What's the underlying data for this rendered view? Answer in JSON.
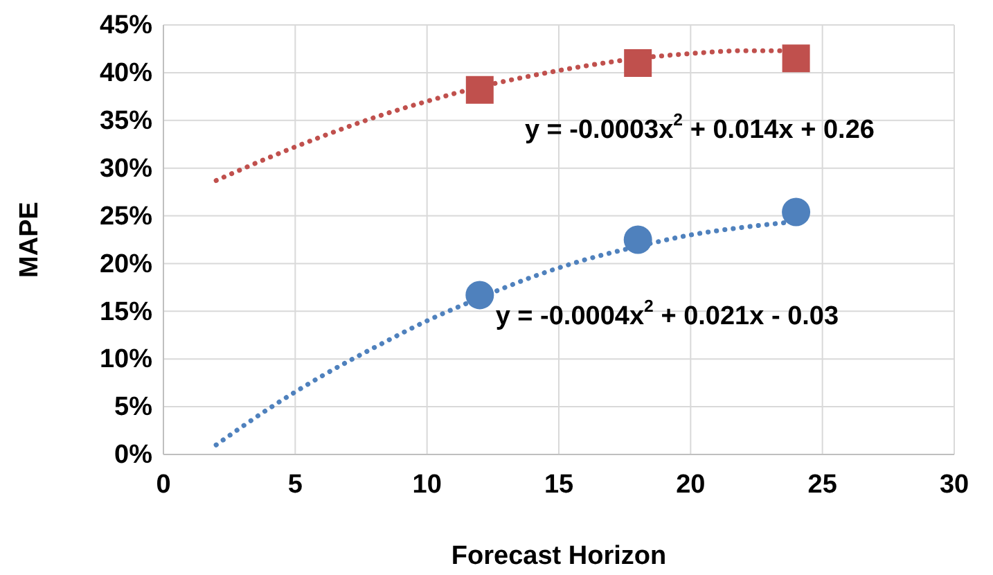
{
  "chart_data": {
    "type": "scatter",
    "xlabel": "Forecast Horizon",
    "ylabel": "MAPE",
    "xlim": [
      0,
      30
    ],
    "xticks": [
      0,
      5,
      10,
      15,
      20,
      25,
      30
    ],
    "ylim": [
      0,
      45
    ],
    "yticks": [
      {
        "value": 0,
        "label": "0%"
      },
      {
        "value": 5,
        "label": "5%"
      },
      {
        "value": 10,
        "label": "10%"
      },
      {
        "value": 15,
        "label": "15%"
      },
      {
        "value": 20,
        "label": "20%"
      },
      {
        "value": 25,
        "label": "25%"
      },
      {
        "value": 30,
        "label": "30%"
      },
      {
        "value": 35,
        "label": "35%"
      },
      {
        "value": 40,
        "label": "40%"
      },
      {
        "value": 45,
        "label": "45%"
      }
    ],
    "grid": true,
    "series": [
      {
        "type": "line",
        "color": "#c0504d",
        "line_style": "dotted",
        "marker": "none",
        "x": [
          2,
          4,
          6,
          8,
          10,
          12,
          14,
          16,
          18,
          20,
          22,
          24
        ],
        "values": [
          28.7,
          31.1,
          33.3,
          35.3,
          37,
          38.5,
          39.7,
          40.7,
          41.5,
          42,
          42.3,
          42.3
        ]
      },
      {
        "type": "line",
        "color": "#4f81bd",
        "line_style": "dotted",
        "marker": "none",
        "x": [
          2,
          4,
          6,
          8,
          10,
          12,
          14,
          16,
          18,
          20,
          22,
          24
        ],
        "values": [
          1,
          4.8,
          8.2,
          11.2,
          14,
          16.4,
          18.6,
          20.4,
          21.8,
          23,
          23.8,
          24.4
        ]
      },
      {
        "color": "#c0504d",
        "marker": "square",
        "x": [
          12,
          18,
          24
        ],
        "values": [
          38.2,
          41,
          41.5
        ]
      },
      {
        "color": "#4f81bd",
        "marker": "circle",
        "x": [
          12,
          18,
          24
        ],
        "values": [
          16.7,
          22.5,
          25.4
        ]
      }
    ],
    "annotations": [
      "y = -0.0003x$^{2}$ + 0.014x + 0.26",
      "y = -0.0004x$^{2}$ + 0.021x - 0.03"
    ]
  }
}
